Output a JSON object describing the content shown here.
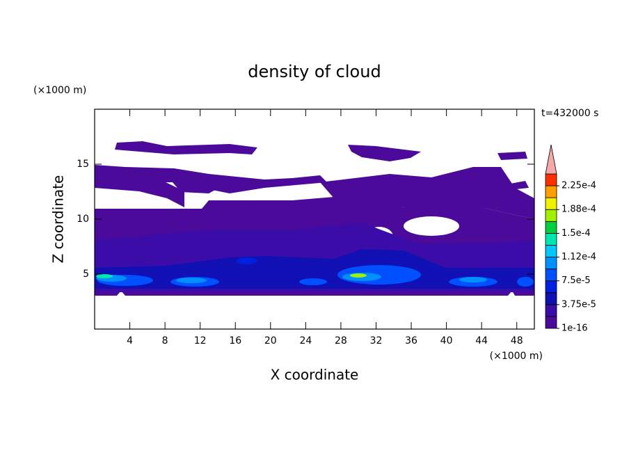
{
  "chart_data": {
    "type": "contour",
    "title": "density of cloud",
    "xlabel": "X coordinate",
    "ylabel": "Z coordinate",
    "xunit": "(×1000 m)",
    "yunit": "(×1000 m)",
    "annotation": "t=432000 s",
    "xlim": [
      0,
      50
    ],
    "ylim": [
      0,
      20
    ],
    "xticks": [
      4,
      8,
      12,
      16,
      20,
      24,
      28,
      32,
      36,
      40,
      44,
      48
    ],
    "yticks": [
      5,
      10,
      15
    ],
    "colorbar": {
      "levels": [
        {
          "value": 1e-16,
          "label": "1e-16"
        },
        {
          "value": 3.75e-05,
          "label": "3.75e-5"
        },
        {
          "value": 7.5e-05,
          "label": "7.5e-5"
        },
        {
          "value": 0.000112,
          "label": "1.12e-4"
        },
        {
          "value": 0.00015,
          "label": "1.5e-4"
        },
        {
          "value": 0.000188,
          "label": "1.88e-4"
        },
        {
          "value": 0.000225,
          "label": "2.25e-4"
        }
      ],
      "colors": [
        "#4b0a9a",
        "#3c0ca8",
        "#1010b4",
        "#0020e0",
        "#0050ff",
        "#0090ff",
        "#00c8ff",
        "#00e8b0",
        "#00d040",
        "#a0f000",
        "#f0f000",
        "#ffa000",
        "#ff3000"
      ],
      "extend_color": "#f4a8a8"
    }
  }
}
